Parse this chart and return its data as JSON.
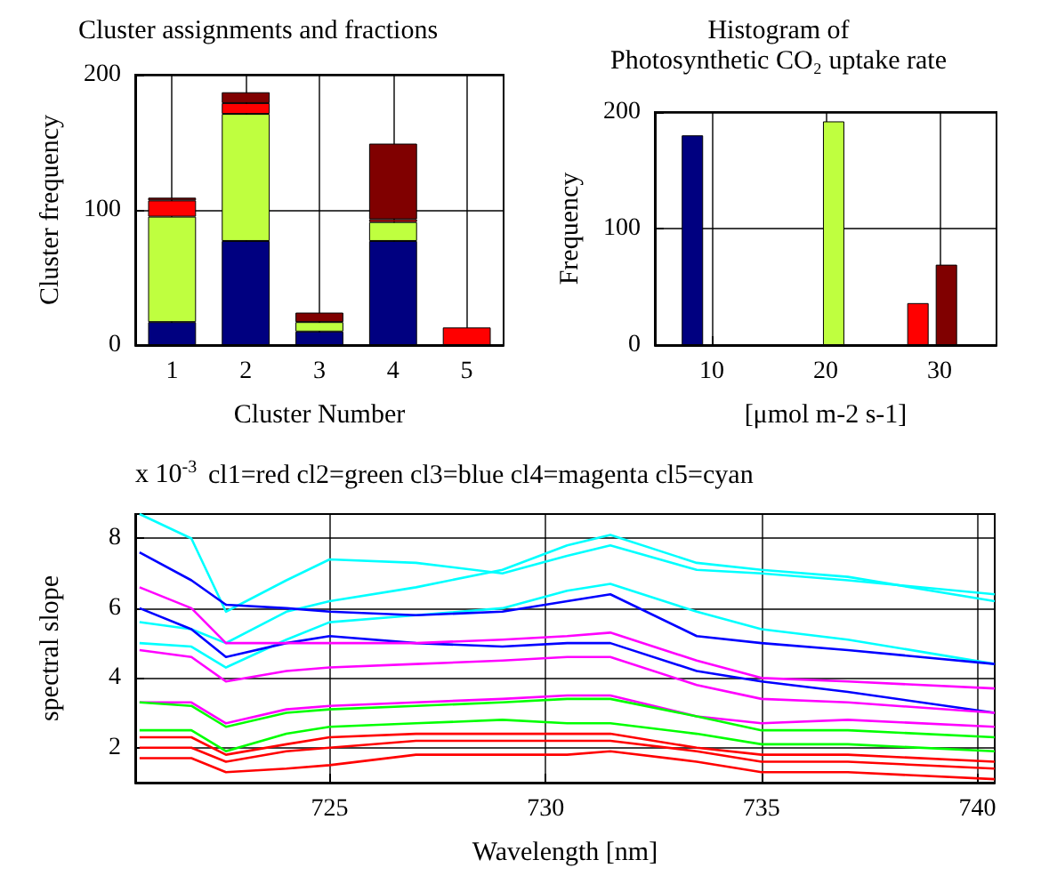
{
  "chart_data": [
    {
      "type": "bar",
      "title": "Cluster assignments and fractions",
      "xlabel": "Cluster Number",
      "ylabel": "Cluster frequency",
      "categories": [
        "1",
        "2",
        "3",
        "4",
        "5"
      ],
      "stacked": true,
      "ylim": [
        0,
        200
      ],
      "yticks": [
        0,
        100,
        200
      ],
      "grid": true,
      "series": [
        {
          "color": "#000080",
          "values": [
            17,
            77,
            10,
            77,
            null
          ]
        },
        {
          "color": "#bfff3f",
          "values": [
            78,
            94,
            7,
            14,
            null
          ]
        },
        {
          "color": "#ff0000",
          "values": [
            12,
            8,
            null,
            2,
            13
          ]
        },
        {
          "color": "#800000",
          "values": [
            2,
            8,
            7,
            56,
            null
          ]
        }
      ]
    },
    {
      "type": "bar",
      "title": "Histogram of\nPhotosynthetic CO₂ uptake rate",
      "xlabel": "[μmol m-2 s-1]",
      "ylabel": "Frequency",
      "xlim": [
        5,
        35
      ],
      "xticks": [
        10,
        20,
        30
      ],
      "ylim": [
        0,
        200
      ],
      "yticks": [
        0,
        100,
        200
      ],
      "grid": true,
      "series": [
        {
          "color": "#000080",
          "x": [
            8.3
          ],
          "values": [
            180
          ]
        },
        {
          "color": "#bfff3f",
          "x": [
            20.7
          ],
          "values": [
            192
          ]
        },
        {
          "color": "#ff0000",
          "x": [
            28.1
          ],
          "values": [
            36
          ]
        },
        {
          "color": "#800000",
          "x": [
            30.6
          ],
          "values": [
            69
          ]
        }
      ]
    },
    {
      "type": "line",
      "title": "cl1=red cl2=green cl3=blue cl4=magenta cl5=cyan",
      "annotations": [
        "x 10$^{-3}$"
      ],
      "xlabel": "Wavelength [nm]",
      "ylabel": "spectral slope",
      "x": [
        720.6,
        721.8,
        722.6,
        724,
        725,
        727,
        729,
        730.5,
        731.5,
        733.5,
        735,
        737,
        740.4
      ],
      "xlim": [
        720.5,
        740.4
      ],
      "xticks": [
        725,
        730,
        735,
        740
      ],
      "ylim": [
        1,
        8.7
      ],
      "yticks": [
        2,
        4,
        6,
        8
      ],
      "grid": true,
      "series": [
        {
          "color": "#00ffff",
          "values": [
            8.7,
            8.0,
            5.9,
            6.8,
            7.4,
            7.3,
            7.0,
            7.5,
            7.8,
            7.1,
            7.0,
            6.8,
            6.4
          ]
        },
        {
          "color": "#00ffff",
          "values": [
            5.6,
            5.4,
            5.0,
            5.9,
            6.2,
            6.6,
            7.1,
            7.8,
            8.1,
            7.3,
            7.1,
            6.9,
            6.2
          ]
        },
        {
          "color": "#00ffff",
          "values": [
            5.0,
            4.9,
            4.3,
            5.1,
            5.6,
            5.8,
            6.0,
            6.5,
            6.7,
            5.9,
            5.4,
            5.1,
            4.4
          ]
        },
        {
          "color": "#0000ff",
          "values": [
            7.6,
            6.8,
            6.1,
            6.0,
            5.9,
            5.8,
            5.9,
            6.2,
            6.4,
            5.2,
            5.0,
            4.8,
            4.4
          ]
        },
        {
          "color": "#0000ff",
          "values": [
            6.0,
            5.4,
            4.6,
            5.0,
            5.2,
            5.0,
            4.9,
            5.0,
            5.0,
            4.2,
            3.9,
            3.6,
            3.0
          ]
        },
        {
          "color": "#ff00ff",
          "values": [
            6.6,
            6.0,
            5.0,
            5.0,
            5.0,
            5.0,
            5.1,
            5.2,
            5.3,
            4.5,
            4.0,
            3.9,
            3.7
          ]
        },
        {
          "color": "#ff00ff",
          "values": [
            4.8,
            4.6,
            3.9,
            4.2,
            4.3,
            4.4,
            4.5,
            4.6,
            4.6,
            3.8,
            3.4,
            3.3,
            3.0
          ]
        },
        {
          "color": "#ff00ff",
          "values": [
            3.3,
            3.3,
            2.7,
            3.1,
            3.2,
            3.3,
            3.4,
            3.5,
            3.5,
            2.9,
            2.7,
            2.8,
            2.6
          ]
        },
        {
          "color": "#00ff00",
          "values": [
            3.3,
            3.2,
            2.6,
            3.0,
            3.1,
            3.2,
            3.3,
            3.4,
            3.4,
            2.9,
            2.5,
            2.5,
            2.3
          ]
        },
        {
          "color": "#00ff00",
          "values": [
            2.5,
            2.5,
            1.9,
            2.4,
            2.6,
            2.7,
            2.8,
            2.7,
            2.7,
            2.4,
            2.1,
            2.1,
            1.9
          ]
        },
        {
          "color": "#ff0000",
          "values": [
            2.3,
            2.3,
            1.8,
            2.1,
            2.3,
            2.4,
            2.4,
            2.4,
            2.4,
            2.0,
            1.8,
            1.8,
            1.6
          ]
        },
        {
          "color": "#ff0000",
          "values": [
            2.0,
            2.0,
            1.6,
            1.9,
            2.0,
            2.2,
            2.2,
            2.2,
            2.2,
            1.9,
            1.6,
            1.6,
            1.4
          ]
        },
        {
          "color": "#ff0000",
          "values": [
            1.7,
            1.7,
            1.3,
            1.4,
            1.5,
            1.8,
            1.8,
            1.8,
            1.9,
            1.6,
            1.3,
            1.3,
            1.1
          ]
        }
      ]
    }
  ]
}
